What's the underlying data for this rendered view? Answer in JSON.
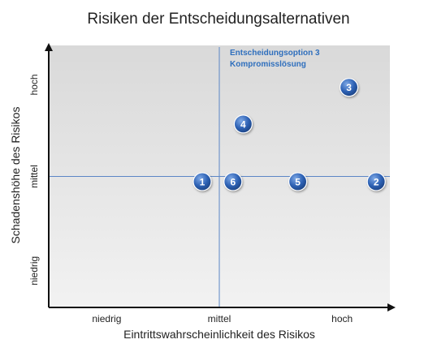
{
  "chart_data": {
    "type": "scatter",
    "title": "Risiken der Entscheidungsalternativen",
    "xlabel": "Eintrittswahrscheinlichkeit des Risikos",
    "ylabel": "Schadenshöhe des Risikos",
    "xlim": [
      0,
      1
    ],
    "ylim": [
      0,
      1
    ],
    "x_tick_labels": [
      {
        "label": "niedrig",
        "value": 0.17
      },
      {
        "label": "mittel",
        "value": 0.5
      },
      {
        "label": "hoch",
        "value": 0.86
      }
    ],
    "y_tick_labels": [
      {
        "label": "niedrig",
        "value": 0.14
      },
      {
        "label": "mittel",
        "value": 0.5
      },
      {
        "label": "hoch",
        "value": 0.85
      }
    ],
    "reference_lines": {
      "x": 0.5,
      "y": 0.5
    },
    "points": [
      {
        "label": "1",
        "x": 0.45,
        "y": 0.48
      },
      {
        "label": "2",
        "x": 0.96,
        "y": 0.48
      },
      {
        "label": "3",
        "x": 0.88,
        "y": 0.84
      },
      {
        "label": "4",
        "x": 0.57,
        "y": 0.7
      },
      {
        "label": "5",
        "x": 0.73,
        "y": 0.48
      },
      {
        "label": "6",
        "x": 0.54,
        "y": 0.48
      }
    ],
    "annotation": {
      "line1": "Entscheidungsoption 3",
      "line2": "Kompromisslösung"
    },
    "colors": {
      "marker": "#2e62b5",
      "reference_line": "#5b86c6",
      "annotation": "#2f6fbd"
    }
  }
}
